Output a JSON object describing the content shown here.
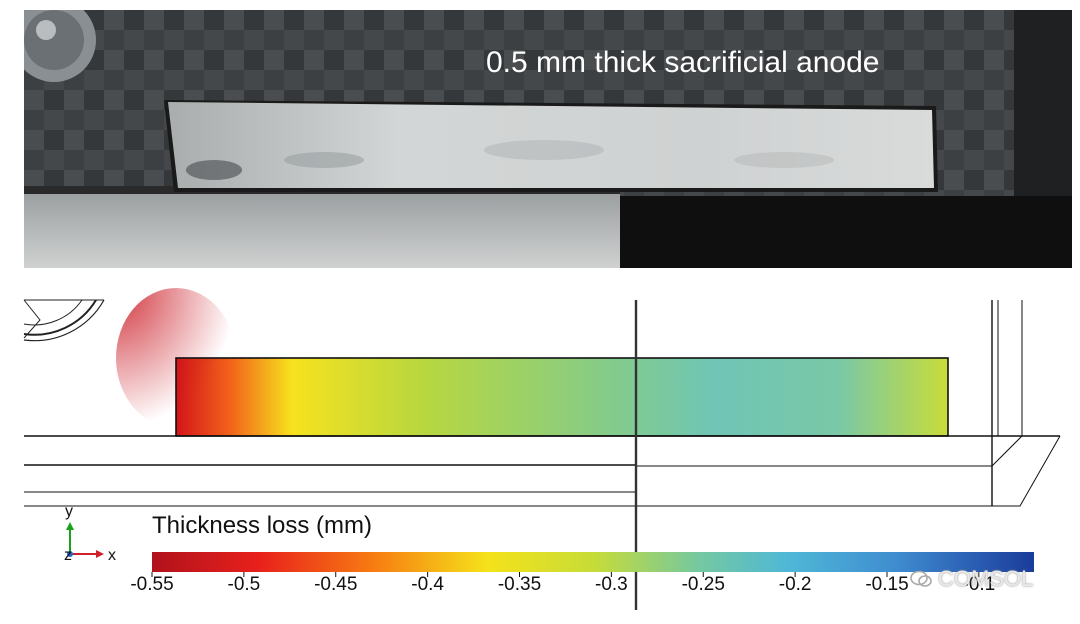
{
  "photo": {
    "label": "0.5 mm thick sacrificial anode"
  },
  "simulation": {
    "colorbar_title": "Thickness loss (mm)",
    "colorbar_ticks": [
      "-0.55",
      "-0.5",
      "-0.45",
      "-0.4",
      "-0.35",
      "-0.3",
      "-0.25",
      "-0.2",
      "-0.15",
      "-0.1"
    ],
    "colorbar_range": [
      -0.55,
      -0.07
    ],
    "colormap": [
      "#b0121b",
      "#e8201c",
      "#f77b12",
      "#f5e21a",
      "#c7dc37",
      "#75c8a0",
      "#4fb8d6",
      "#3f8ed0",
      "#2b5fb5",
      "#1a3c9a"
    ],
    "axes": {
      "y_label": "y",
      "x_label": "x",
      "z_label": "z"
    },
    "axis_colors": {
      "y": "#1aa31a",
      "x": "#d0202a",
      "z": "#1a6ad6"
    }
  },
  "watermark": {
    "text": "COMSOL"
  }
}
